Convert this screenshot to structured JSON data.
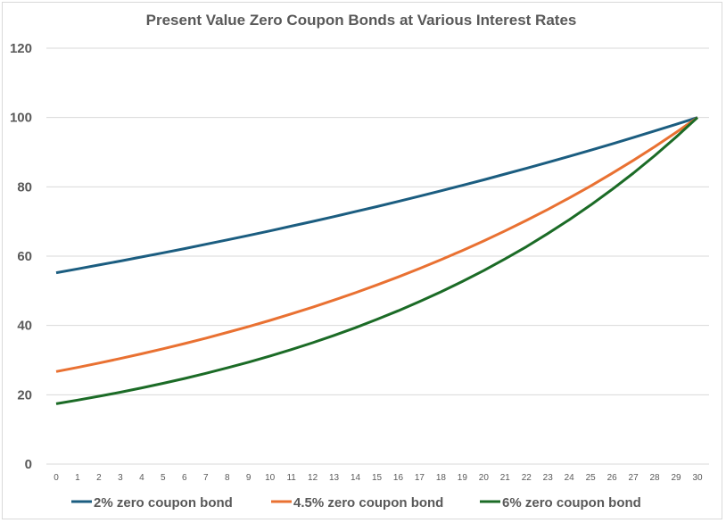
{
  "chart_data": {
    "type": "line",
    "title": "Present Value Zero Coupon Bonds at Various Interest Rates",
    "xlabel": "",
    "ylabel": "",
    "ylim": [
      0,
      120
    ],
    "yticks": [
      0,
      20,
      40,
      60,
      80,
      100,
      120
    ],
    "x": [
      0,
      1,
      2,
      3,
      4,
      5,
      6,
      7,
      8,
      9,
      10,
      11,
      12,
      13,
      14,
      15,
      16,
      17,
      18,
      19,
      20,
      21,
      22,
      23,
      24,
      25,
      26,
      27,
      28,
      29,
      30
    ],
    "grid": true,
    "legend": "bottom",
    "series": [
      {
        "name": "2% zero coupon bond",
        "color": "#1b5d80",
        "values": [
          55.21,
          56.31,
          57.44,
          58.59,
          59.76,
          60.95,
          62.17,
          63.42,
          64.68,
          65.98,
          67.3,
          68.64,
          70.02,
          71.42,
          72.84,
          74.3,
          75.79,
          77.3,
          78.85,
          80.43,
          82.03,
          83.68,
          85.35,
          87.06,
          88.8,
          90.57,
          92.38,
          94.23,
          96.12,
          98.04,
          100
        ]
      },
      {
        "name": "4.5% zero coupon bond",
        "color": "#e97132",
        "values": [
          26.7,
          27.9,
          29.16,
          30.47,
          31.84,
          33.27,
          34.77,
          36.33,
          37.97,
          39.68,
          41.46,
          43.33,
          45.28,
          47.32,
          49.45,
          51.67,
          54.0,
          56.43,
          58.97,
          61.62,
          64.39,
          67.29,
          70.32,
          73.48,
          76.79,
          80.25,
          83.86,
          87.63,
          91.57,
          95.69,
          100
        ]
      },
      {
        "name": "6% zero coupon bond",
        "color": "#1b6b26",
        "values": [
          17.41,
          18.46,
          19.56,
          20.74,
          21.98,
          23.3,
          24.7,
          26.18,
          27.75,
          29.42,
          31.18,
          33.05,
          35.03,
          37.14,
          39.36,
          41.73,
          44.23,
          46.88,
          49.7,
          52.68,
          55.84,
          59.19,
          62.74,
          66.51,
          70.5,
          74.73,
          79.21,
          83.96,
          89.0,
          94.34,
          100
        ]
      }
    ]
  }
}
